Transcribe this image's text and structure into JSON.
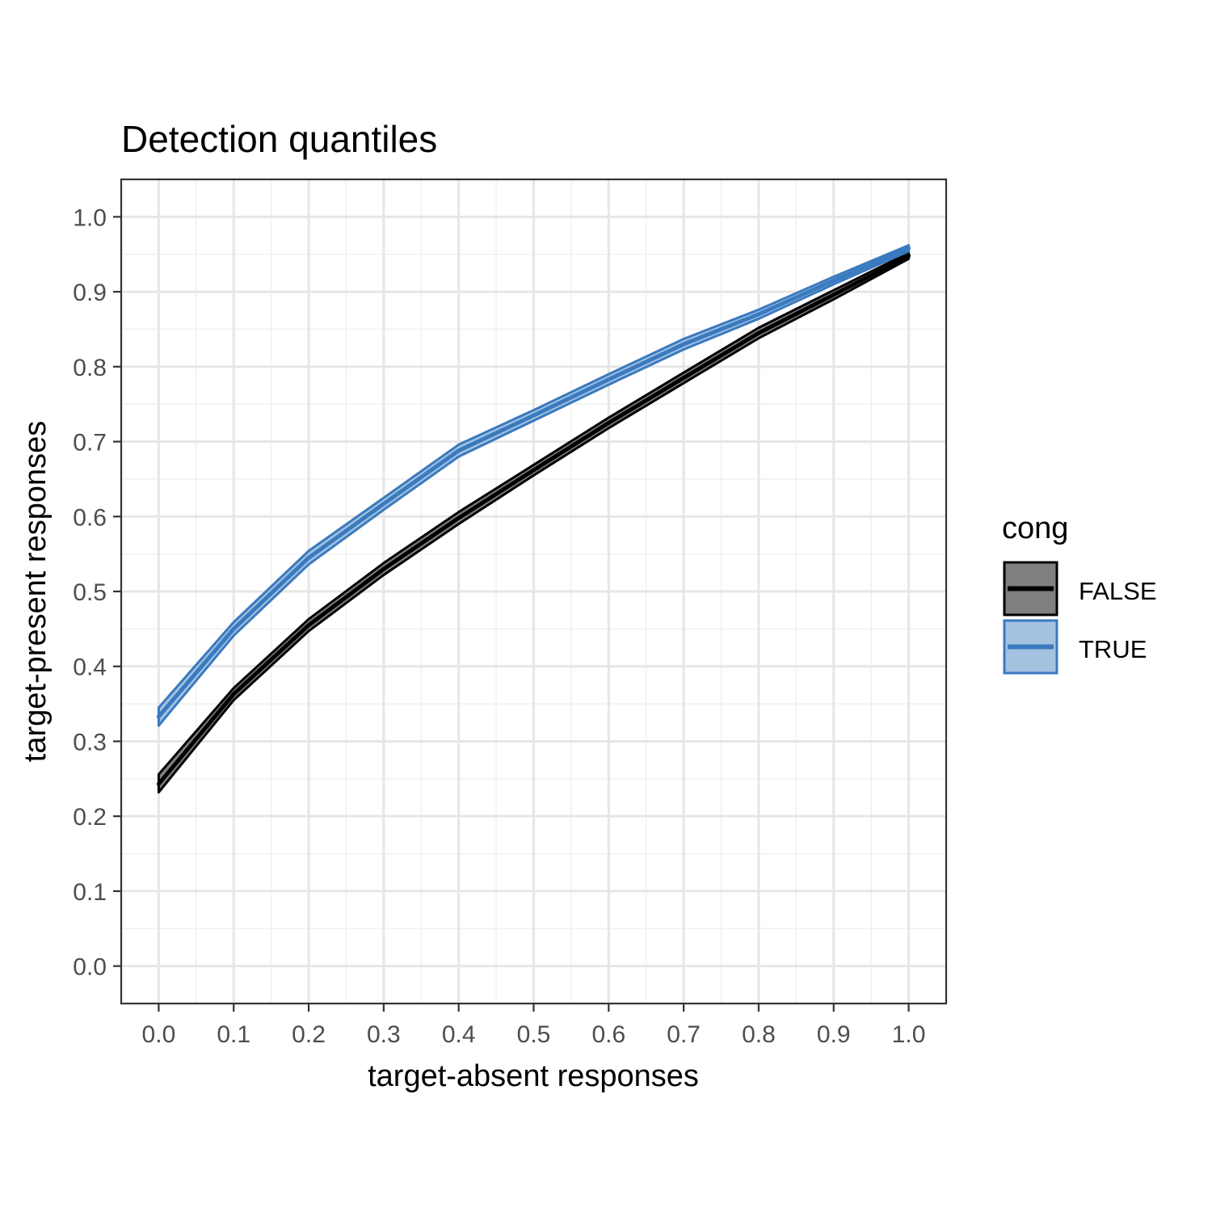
{
  "chart_data": {
    "type": "line",
    "title": "Detection quantiles",
    "xlabel": "target-absent responses",
    "ylabel": "target-present responses",
    "xlim": [
      -0.05,
      1.05
    ],
    "ylim": [
      -0.05,
      1.05
    ],
    "x_ticks": [
      "0.0",
      "0.1",
      "0.2",
      "0.3",
      "0.4",
      "0.5",
      "0.6",
      "0.7",
      "0.8",
      "0.9",
      "1.0"
    ],
    "y_ticks": [
      "0.0",
      "0.1",
      "0.2",
      "0.3",
      "0.4",
      "0.5",
      "0.6",
      "0.7",
      "0.8",
      "0.9",
      "1.0"
    ],
    "grid": true,
    "legend": {
      "title": "cong",
      "position": "right",
      "entries": [
        "FALSE",
        "TRUE"
      ]
    },
    "series": [
      {
        "name": "FALSE",
        "color": "#000000",
        "ribbon_color": "#7f7f7f",
        "x": [
          0.0,
          0.1,
          0.2,
          0.3,
          0.4,
          0.5,
          0.6,
          0.7,
          0.8,
          0.9,
          1.0
        ],
        "y": [
          0.243,
          0.363,
          0.455,
          0.53,
          0.598,
          0.662,
          0.725,
          0.785,
          0.845,
          0.896,
          0.948
        ],
        "y_lower": [
          0.232,
          0.355,
          0.447,
          0.522,
          0.59,
          0.655,
          0.718,
          0.778,
          0.838,
          0.89,
          0.944
        ],
        "y_upper": [
          0.256,
          0.371,
          0.463,
          0.538,
          0.606,
          0.669,
          0.732,
          0.792,
          0.852,
          0.902,
          0.952
        ]
      },
      {
        "name": "TRUE",
        "color": "#3a7abf",
        "ribbon_color": "#a3c2e0",
        "x": [
          0.0,
          0.1,
          0.2,
          0.3,
          0.4,
          0.5,
          0.6,
          0.7,
          0.8,
          0.9,
          1.0
        ],
        "y": [
          0.333,
          0.45,
          0.545,
          0.617,
          0.688,
          0.735,
          0.783,
          0.83,
          0.87,
          0.915,
          0.958
        ],
        "y_lower": [
          0.321,
          0.441,
          0.536,
          0.609,
          0.68,
          0.728,
          0.776,
          0.823,
          0.864,
          0.91,
          0.954
        ],
        "y_upper": [
          0.345,
          0.459,
          0.554,
          0.625,
          0.696,
          0.742,
          0.79,
          0.837,
          0.876,
          0.92,
          0.962
        ]
      }
    ]
  }
}
